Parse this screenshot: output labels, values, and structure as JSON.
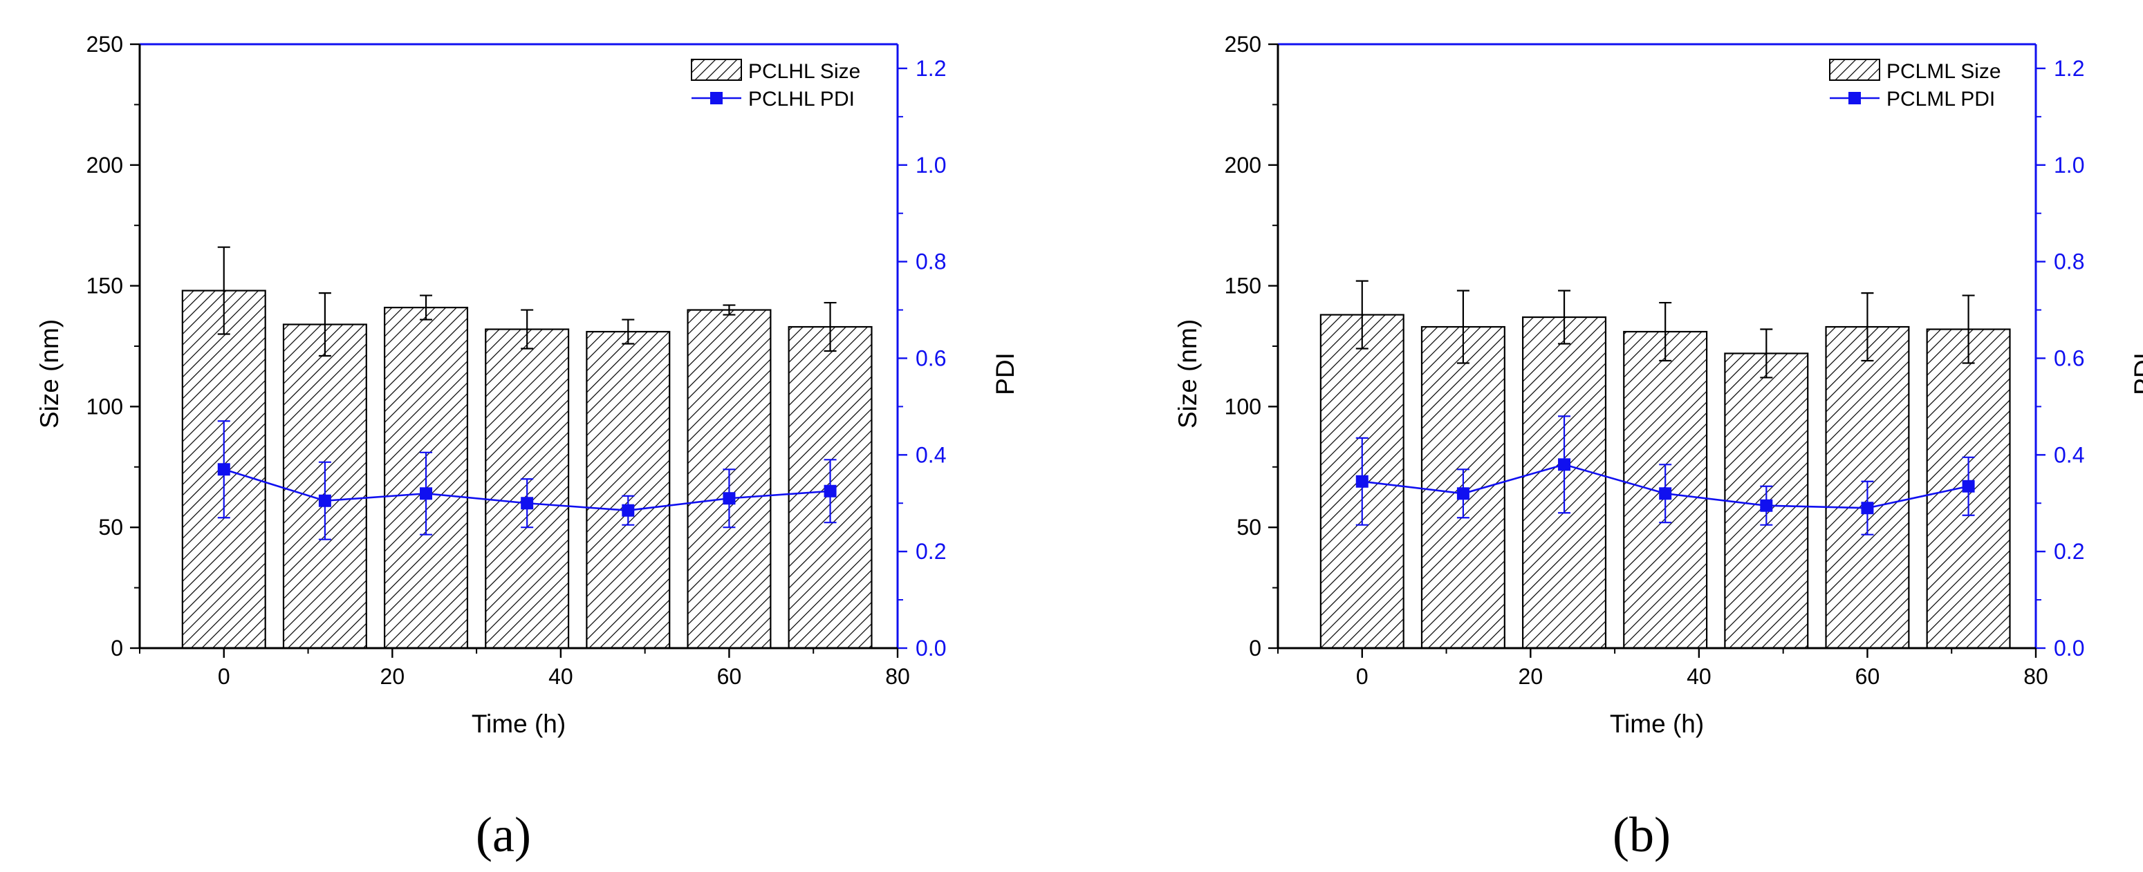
{
  "chart_data": [
    {
      "type": "bar",
      "panel_label": "(a)",
      "xlabel": "Time (h)",
      "ylabel": "Size (nm)",
      "y2label": "PDI",
      "xlim": [
        -10,
        80
      ],
      "ylim": [
        0,
        250
      ],
      "y2lim": [
        0,
        1.25
      ],
      "xticks": [
        "0",
        "20",
        "40",
        "60",
        "80"
      ],
      "yticks": [
        "0",
        "50",
        "100",
        "150",
        "200",
        "250"
      ],
      "y2ticks": [
        "0.0",
        "0.2",
        "0.4",
        "0.6",
        "0.8",
        "1.0",
        "1.2"
      ],
      "legend_position": "top-right",
      "series": [
        {
          "name": "PCLHL Size",
          "kind": "bar",
          "axis": "left",
          "color": "#000000",
          "fill": "hatched",
          "x": [
            0,
            12,
            24,
            36,
            48,
            60,
            72
          ],
          "values": [
            148,
            134,
            141,
            132,
            131,
            140,
            133
          ],
          "errors": [
            18,
            13,
            5,
            8,
            5,
            2,
            10
          ]
        },
        {
          "name": "PCLHL PDI",
          "kind": "line",
          "axis": "right",
          "color": "#1010f0",
          "marker": "square",
          "x": [
            0,
            12,
            24,
            36,
            48,
            60,
            72
          ],
          "values": [
            0.37,
            0.305,
            0.32,
            0.3,
            0.285,
            0.31,
            0.325
          ],
          "errors": [
            0.1,
            0.08,
            0.085,
            0.05,
            0.03,
            0.06,
            0.065
          ]
        }
      ]
    },
    {
      "type": "bar",
      "panel_label": "(b)",
      "xlabel": "Time (h)",
      "ylabel": "Size (nm)",
      "y2label": "PDI",
      "xlim": [
        -10,
        80
      ],
      "ylim": [
        0,
        250
      ],
      "y2lim": [
        0,
        1.25
      ],
      "xticks": [
        "0",
        "20",
        "40",
        "60",
        "80"
      ],
      "yticks": [
        "0",
        "50",
        "100",
        "150",
        "200",
        "250"
      ],
      "y2ticks": [
        "0.0",
        "0.2",
        "0.4",
        "0.6",
        "0.8",
        "1.0",
        "1.2"
      ],
      "legend_position": "top-right",
      "series": [
        {
          "name": "PCLML Size",
          "kind": "bar",
          "axis": "left",
          "color": "#000000",
          "fill": "hatched",
          "x": [
            0,
            12,
            24,
            36,
            48,
            60,
            72
          ],
          "values": [
            138,
            133,
            137,
            131,
            122,
            133,
            132
          ],
          "errors": [
            14,
            15,
            11,
            12,
            10,
            14,
            14
          ]
        },
        {
          "name": "PCLML PDI",
          "kind": "line",
          "axis": "right",
          "color": "#1010f0",
          "marker": "square",
          "x": [
            0,
            12,
            24,
            36,
            48,
            60,
            72
          ],
          "values": [
            0.345,
            0.32,
            0.38,
            0.32,
            0.295,
            0.29,
            0.335
          ],
          "errors": [
            0.09,
            0.05,
            0.1,
            0.06,
            0.04,
            0.055,
            0.06
          ]
        }
      ]
    }
  ]
}
